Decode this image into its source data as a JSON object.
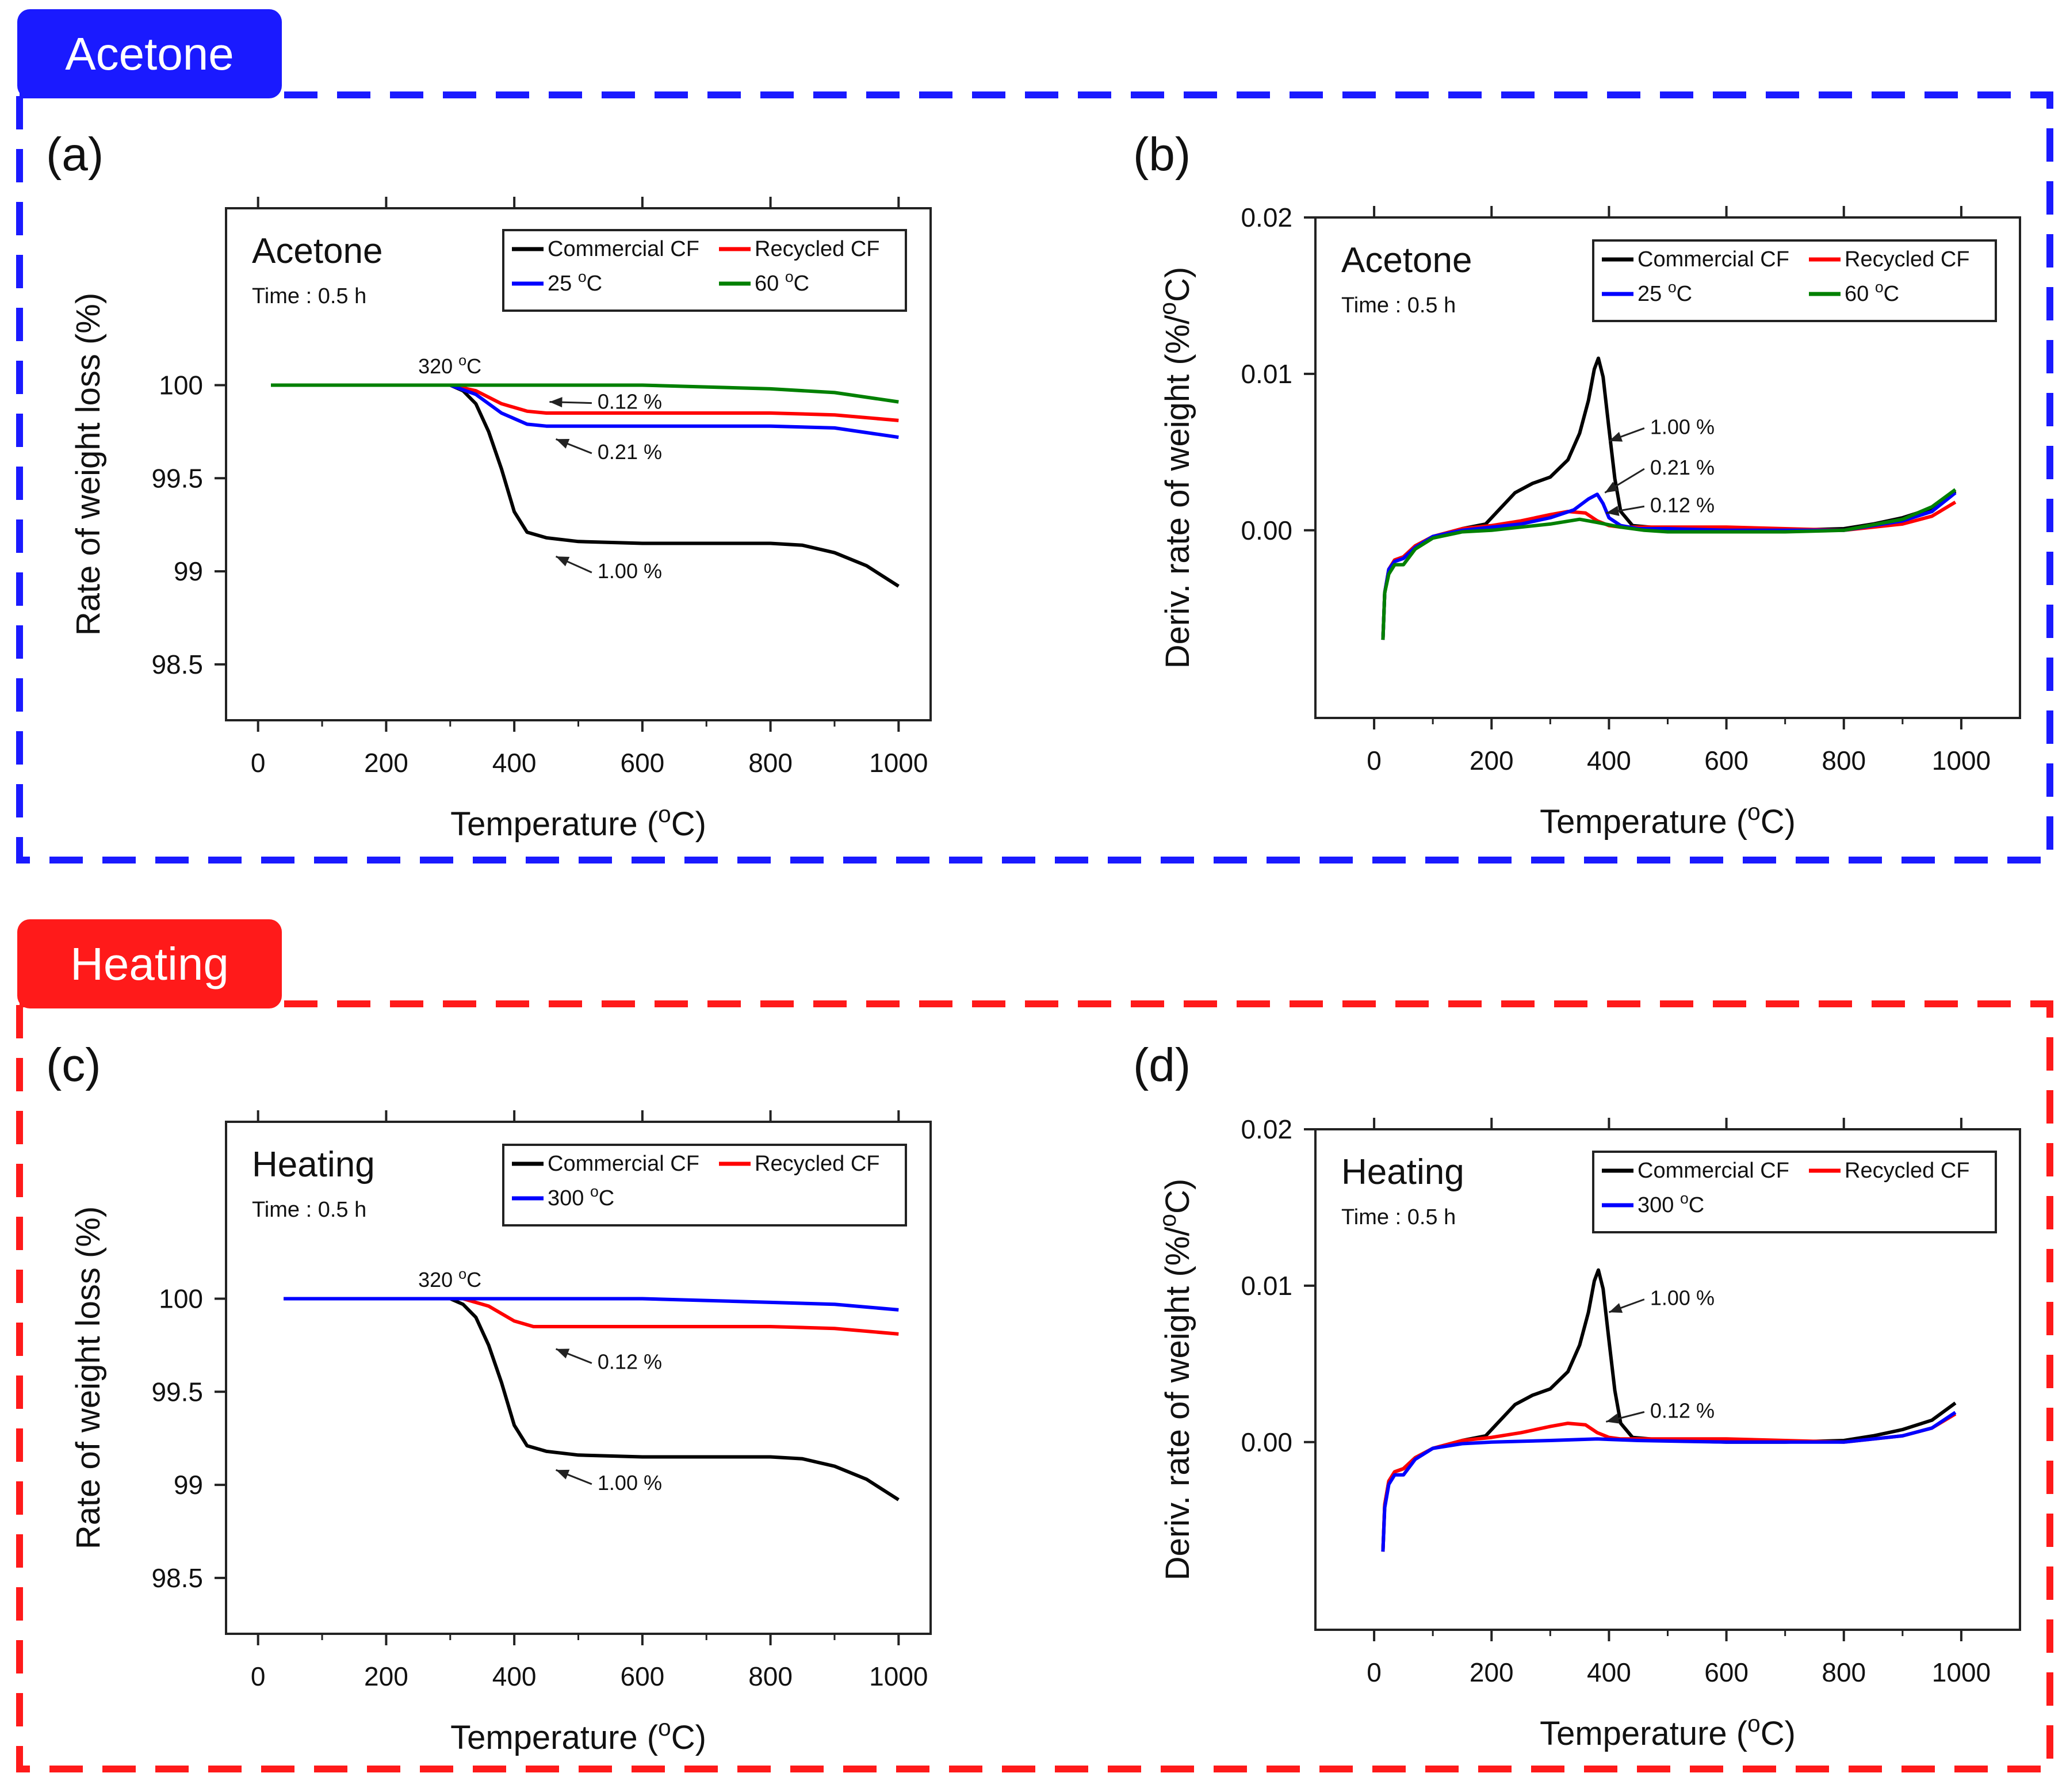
{
  "sections": [
    {
      "label": "Acetone",
      "color": "#1a1aff"
    },
    {
      "label": "Heating",
      "color": "#ff1a1a"
    }
  ],
  "chart_data": [
    {
      "panel": "(a)",
      "type": "line",
      "inset_title": "Acetone",
      "inset_subtitle": "Time : 0.5 h",
      "xlabel": "Temperature (oC)",
      "ylabel": "Rate of weight loss (%)",
      "xlim": [
        -50,
        1050
      ],
      "ylim": [
        98.2,
        100.95
      ],
      "xticks": [
        0,
        200,
        400,
        600,
        800,
        1000
      ],
      "xtick_labels": [
        "0",
        "200",
        "400",
        "600",
        "800",
        "1000"
      ],
      "yticks": [
        98.5,
        99,
        99.5,
        100
      ],
      "ytick_labels": [
        "98.5",
        "99",
        "99.5",
        "100"
      ],
      "series": [
        {
          "name": "Commercial CF",
          "color": "#000000",
          "x": [
            20,
            300,
            320,
            340,
            360,
            380,
            400,
            420,
            450,
            500,
            600,
            700,
            800,
            850,
            900,
            950,
            1000
          ],
          "y": [
            100,
            100,
            99.97,
            99.9,
            99.75,
            99.55,
            99.32,
            99.21,
            99.18,
            99.16,
            99.15,
            99.15,
            99.15,
            99.14,
            99.1,
            99.03,
            98.92
          ]
        },
        {
          "name": "Recycled CF",
          "color": "#ff0000",
          "x": [
            20,
            300,
            340,
            380,
            420,
            450,
            600,
            800,
            900,
            1000
          ],
          "y": [
            100,
            100,
            99.97,
            99.9,
            99.86,
            99.85,
            99.85,
            99.85,
            99.84,
            99.81
          ]
        },
        {
          "name": "25 oC",
          "color": "#0000ff",
          "x": [
            20,
            300,
            340,
            380,
            420,
            450,
            600,
            800,
            900,
            1000
          ],
          "y": [
            100,
            100,
            99.95,
            99.85,
            99.79,
            99.78,
            99.78,
            99.78,
            99.77,
            99.72
          ]
        },
        {
          "name": "60 oC",
          "color": "#008000",
          "x": [
            20,
            300,
            600,
            800,
            900,
            1000
          ],
          "y": [
            100,
            100,
            100,
            99.98,
            99.96,
            99.91
          ]
        }
      ],
      "annotations": [
        {
          "text": "320 oC",
          "x": 250,
          "y": 100.1,
          "arrow": false
        },
        {
          "text": "0.12 %",
          "x": 530,
          "y": 99.91,
          "ax": 455,
          "ay": 99.91,
          "arrow": true
        },
        {
          "text": "0.21 %",
          "x": 530,
          "y": 99.64,
          "ax": 465,
          "ay": 99.71,
          "arrow": true
        },
        {
          "text": "1.00 %",
          "x": 530,
          "y": 99.0,
          "ax": 465,
          "ay": 99.08,
          "arrow": true
        }
      ]
    },
    {
      "panel": "(b)",
      "type": "line",
      "inset_title": "Acetone",
      "inset_subtitle": "Time : 0.5 h",
      "xlabel": "Temperature (oC)",
      "ylabel": "Deriv. rate of weight (%/oC)",
      "xlim": [
        -100,
        1100
      ],
      "ylim": [
        -0.012,
        0.02
      ],
      "xticks": [
        0,
        200,
        400,
        600,
        800,
        1000
      ],
      "xtick_labels": [
        "0",
        "200",
        "400",
        "600",
        "800",
        "1000"
      ],
      "yticks": [
        0,
        0.01,
        0.02
      ],
      "ytick_labels": [
        "0.00",
        "0.01",
        "0.02"
      ],
      "series": [
        {
          "name": "Commercial CF",
          "color": "#000000",
          "x": [
            15,
            18,
            25,
            35,
            50,
            70,
            100,
            150,
            190,
            210,
            240,
            270,
            300,
            330,
            350,
            365,
            375,
            382,
            390,
            400,
            410,
            420,
            440,
            500,
            600,
            700,
            800,
            850,
            900,
            950,
            990
          ],
          "y": [
            -0.007,
            -0.004,
            -0.0025,
            -0.0019,
            -0.0017,
            -0.001,
            -0.0004,
            0.0001,
            0.0004,
            0.0012,
            0.0024,
            0.003,
            0.0034,
            0.0045,
            0.0062,
            0.0083,
            0.0103,
            0.011,
            0.0098,
            0.0065,
            0.0033,
            0.0012,
            0.0003,
            0.0001,
            0.0,
            0.0,
            0.0001,
            0.0004,
            0.0008,
            0.0014,
            0.0025
          ]
        },
        {
          "name": "Recycled CF",
          "color": "#ff0000",
          "x": [
            15,
            18,
            25,
            35,
            50,
            70,
            100,
            150,
            200,
            250,
            300,
            330,
            360,
            380,
            400,
            420,
            450,
            500,
            600,
            700,
            800,
            900,
            950,
            990
          ],
          "y": [
            -0.007,
            -0.004,
            -0.0025,
            -0.0019,
            -0.0017,
            -0.001,
            -0.0004,
            0.0001,
            0.0003,
            0.0006,
            0.001,
            0.0012,
            0.0011,
            0.0006,
            0.0003,
            0.0002,
            0.0002,
            0.0002,
            0.0002,
            0.0001,
            0.0,
            0.0004,
            0.0009,
            0.0018
          ]
        },
        {
          "name": "25 oC",
          "color": "#0000ff",
          "x": [
            15,
            18,
            25,
            35,
            50,
            70,
            100,
            150,
            200,
            250,
            300,
            340,
            365,
            380,
            390,
            400,
            420,
            450,
            500,
            600,
            700,
            800,
            900,
            950,
            990
          ],
          "y": [
            -0.007,
            -0.004,
            -0.0025,
            -0.002,
            -0.0018,
            -0.0011,
            -0.0004,
            0.0,
            0.0002,
            0.0004,
            0.0008,
            0.0013,
            0.002,
            0.0023,
            0.0017,
            0.0008,
            0.0003,
            0.0001,
            0.0001,
            0.0,
            0.0,
            0.0,
            0.0006,
            0.0012,
            0.0024
          ]
        },
        {
          "name": "60 oC",
          "color": "#008000",
          "x": [
            15,
            18,
            25,
            35,
            50,
            70,
            100,
            150,
            200,
            250,
            300,
            350,
            380,
            420,
            460,
            500,
            600,
            700,
            800,
            900,
            950,
            990
          ],
          "y": [
            -0.007,
            -0.004,
            -0.0028,
            -0.0022,
            -0.0022,
            -0.0012,
            -0.0005,
            -0.0001,
            0.0,
            0.0002,
            0.0004,
            0.0007,
            0.0005,
            0.0002,
            0.0,
            -0.0001,
            -0.0001,
            -0.0001,
            0.0,
            0.0007,
            0.0015,
            0.0026
          ]
        }
      ],
      "annotations": [
        {
          "text": "1.00 %",
          "x": 470,
          "y": 0.0066,
          "ax": 400,
          "ay": 0.0057,
          "arrow": true
        },
        {
          "text": "0.21 %",
          "x": 470,
          "y": 0.004,
          "ax": 393,
          "ay": 0.0024,
          "arrow": true
        },
        {
          "text": "0.12 %",
          "x": 470,
          "y": 0.0016,
          "ax": 395,
          "ay": 0.0011,
          "arrow": true
        }
      ]
    },
    {
      "panel": "(c)",
      "type": "line",
      "inset_title": "Heating",
      "inset_subtitle": "Time : 0.5 h",
      "xlabel": "Temperature (oC)",
      "ylabel": "Rate of weight loss (%)",
      "xlim": [
        -50,
        1050
      ],
      "ylim": [
        98.2,
        100.95
      ],
      "xticks": [
        0,
        200,
        400,
        600,
        800,
        1000
      ],
      "xtick_labels": [
        "0",
        "200",
        "400",
        "600",
        "800",
        "1000"
      ],
      "yticks": [
        98.5,
        99,
        99.5,
        100
      ],
      "ytick_labels": [
        "98.5",
        "99",
        "99.5",
        "100"
      ],
      "series": [
        {
          "name": "Commercial CF",
          "color": "#000000",
          "x": [
            40,
            300,
            320,
            340,
            360,
            380,
            400,
            420,
            450,
            500,
            600,
            700,
            800,
            850,
            900,
            950,
            1000
          ],
          "y": [
            100,
            100,
            99.97,
            99.9,
            99.75,
            99.55,
            99.32,
            99.21,
            99.18,
            99.16,
            99.15,
            99.15,
            99.15,
            99.14,
            99.1,
            99.03,
            98.92
          ]
        },
        {
          "name": "Recycled CF",
          "color": "#ff0000",
          "x": [
            40,
            320,
            360,
            400,
            430,
            450,
            600,
            800,
            900,
            1000
          ],
          "y": [
            100,
            100,
            99.96,
            99.88,
            99.85,
            99.85,
            99.85,
            99.85,
            99.84,
            99.81
          ]
        },
        {
          "name": "300 oC",
          "color": "#0000ff",
          "x": [
            40,
            300,
            600,
            800,
            900,
            1000
          ],
          "y": [
            100,
            100,
            100,
            99.98,
            99.97,
            99.94
          ]
        }
      ],
      "annotations": [
        {
          "text": "320 oC",
          "x": 250,
          "y": 100.1,
          "arrow": false
        },
        {
          "text": "0.12 %",
          "x": 530,
          "y": 99.66,
          "ax": 465,
          "ay": 99.73,
          "arrow": true
        },
        {
          "text": "1.00 %",
          "x": 530,
          "y": 99.01,
          "ax": 465,
          "ay": 99.08,
          "arrow": true
        }
      ]
    },
    {
      "panel": "(d)",
      "type": "line",
      "inset_title": "Heating",
      "inset_subtitle": "Time : 0.5 h",
      "xlabel": "Temperature (oC)",
      "ylabel": "Deriv. rate of weight (%/oC)",
      "xlim": [
        -100,
        1100
      ],
      "ylim": [
        -0.012,
        0.02
      ],
      "xticks": [
        0,
        200,
        400,
        600,
        800,
        1000
      ],
      "xtick_labels": [
        "0",
        "200",
        "400",
        "600",
        "800",
        "1000"
      ],
      "yticks": [
        0,
        0.01,
        0.02
      ],
      "ytick_labels": [
        "0.00",
        "0.01",
        "0.02"
      ],
      "series": [
        {
          "name": "Commercial CF",
          "color": "#000000",
          "x": [
            15,
            18,
            25,
            35,
            50,
            70,
            100,
            150,
            190,
            210,
            240,
            270,
            300,
            330,
            350,
            365,
            375,
            382,
            390,
            400,
            410,
            420,
            440,
            500,
            600,
            700,
            800,
            850,
            900,
            950,
            990
          ],
          "y": [
            -0.007,
            -0.004,
            -0.0025,
            -0.0019,
            -0.0017,
            -0.001,
            -0.0004,
            0.0001,
            0.0004,
            0.0012,
            0.0024,
            0.003,
            0.0034,
            0.0045,
            0.0062,
            0.0083,
            0.0103,
            0.011,
            0.0098,
            0.0065,
            0.0033,
            0.0012,
            0.0003,
            0.0001,
            0.0,
            0.0,
            0.0001,
            0.0004,
            0.0008,
            0.0014,
            0.0025
          ]
        },
        {
          "name": "Recycled CF",
          "color": "#ff0000",
          "x": [
            15,
            18,
            25,
            35,
            50,
            70,
            100,
            150,
            200,
            250,
            300,
            330,
            360,
            380,
            400,
            420,
            450,
            500,
            600,
            700,
            800,
            900,
            950,
            990
          ],
          "y": [
            -0.007,
            -0.004,
            -0.0025,
            -0.0019,
            -0.0017,
            -0.001,
            -0.0004,
            0.0001,
            0.0003,
            0.0006,
            0.001,
            0.0012,
            0.0011,
            0.0006,
            0.0003,
            0.0002,
            0.0002,
            0.0002,
            0.0002,
            0.0001,
            0.0,
            0.0004,
            0.0009,
            0.0018
          ]
        },
        {
          "name": "300 oC",
          "color": "#0000ff",
          "x": [
            15,
            18,
            25,
            35,
            50,
            70,
            100,
            150,
            200,
            300,
            380,
            450,
            600,
            700,
            800,
            900,
            950,
            990
          ],
          "y": [
            -0.007,
            -0.0042,
            -0.0027,
            -0.0021,
            -0.0021,
            -0.0011,
            -0.0004,
            -0.0001,
            0.0,
            0.0001,
            0.0002,
            0.0001,
            0.0,
            0.0,
            0.0,
            0.0004,
            0.0009,
            0.0019
          ]
        }
      ],
      "annotations": [
        {
          "text": "1.00 %",
          "x": 470,
          "y": 0.0092,
          "ax": 400,
          "ay": 0.0083,
          "arrow": true
        },
        {
          "text": "0.12 %",
          "x": 470,
          "y": 0.002,
          "ax": 395,
          "ay": 0.0013,
          "arrow": true
        }
      ]
    }
  ]
}
